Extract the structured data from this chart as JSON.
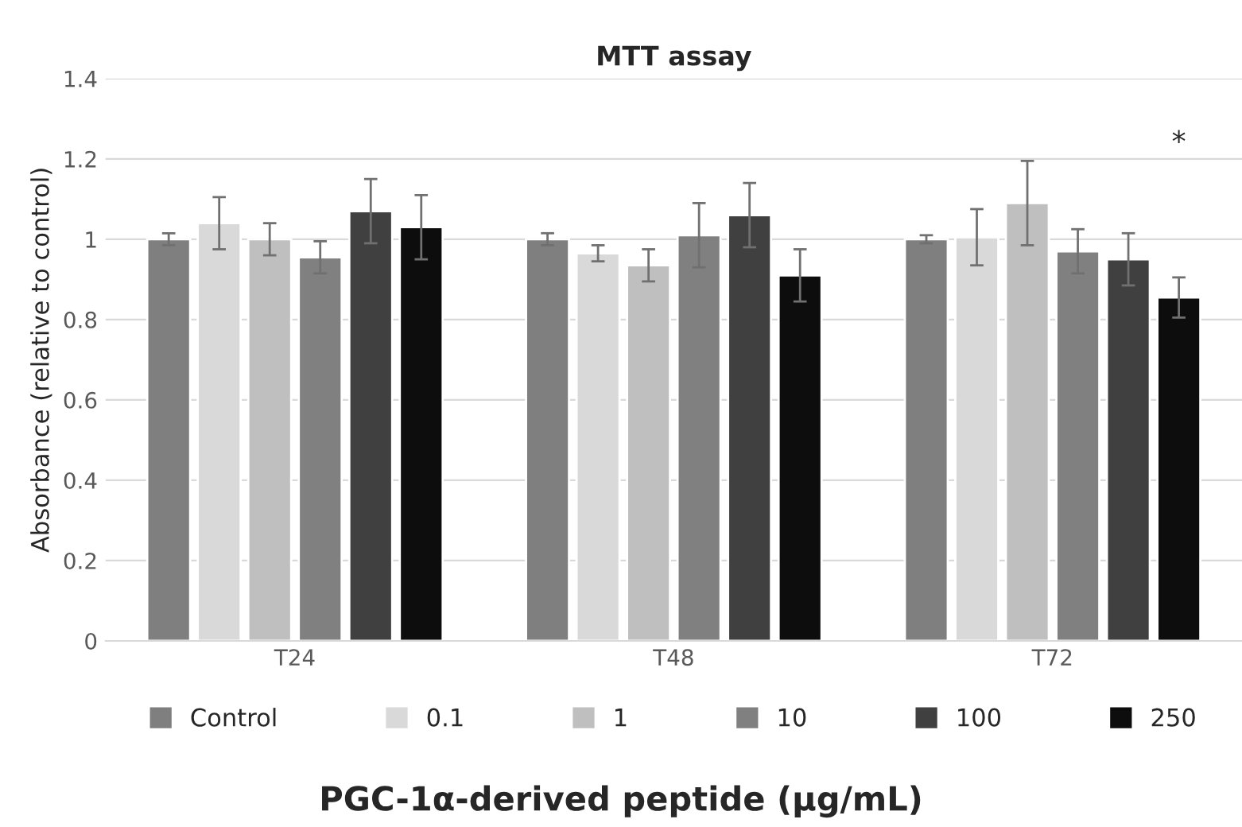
{
  "chart_data": {
    "type": "bar",
    "title": "MTT assay",
    "xlabel": "PGC-1α-derived peptide (μg/mL)",
    "ylabel": "Absorbance (relative to control)",
    "categories": [
      "T24",
      "T48",
      "T72"
    ],
    "series": [
      {
        "name": "Control",
        "color": "#7f7f7f",
        "values": [
          1.0,
          1.0,
          1.0
        ],
        "errors": [
          0.015,
          0.015,
          0.01
        ]
      },
      {
        "name": "0.1",
        "color": "#d9d9d9",
        "values": [
          1.04,
          0.965,
          1.005
        ],
        "errors": [
          0.065,
          0.02,
          0.07
        ]
      },
      {
        "name": "1",
        "color": "#bfbfbf",
        "values": [
          1.0,
          0.935,
          1.09
        ],
        "errors": [
          0.04,
          0.04,
          0.105
        ]
      },
      {
        "name": "10",
        "color": "#808080",
        "values": [
          0.955,
          1.01,
          0.97
        ],
        "errors": [
          0.04,
          0.08,
          0.055
        ]
      },
      {
        "name": "100",
        "color": "#404040",
        "values": [
          1.07,
          1.06,
          0.95
        ],
        "errors": [
          0.08,
          0.08,
          0.065
        ]
      },
      {
        "name": "250",
        "color": "#0d0d0d",
        "values": [
          1.03,
          0.91,
          0.855
        ],
        "errors": [
          0.08,
          0.065,
          0.05
        ]
      }
    ],
    "ylim": [
      0,
      1.4
    ],
    "yticks": [
      0,
      {
        "value": 0.2,
        "label": "0.2"
      },
      {
        "value": 0.4,
        "label": "0.4"
      },
      {
        "value": 0.6,
        "label": "0.6"
      },
      {
        "value": 0.8,
        "label": "0.8"
      },
      1,
      {
        "value": 1.2,
        "label": "1.2"
      },
      {
        "value": 1.4,
        "label": "1.4"
      }
    ],
    "grid": "y",
    "legend": "bottom",
    "annotations": [
      "*"
    ]
  }
}
